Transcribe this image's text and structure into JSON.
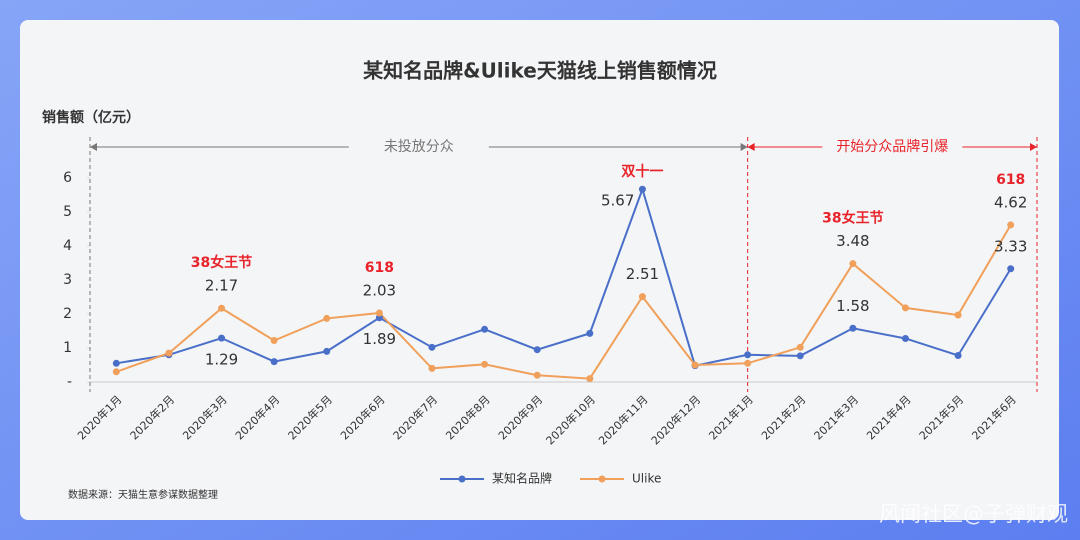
{
  "chart_data": {
    "type": "line",
    "title": "某知名品牌&Ulike天猫线上销售额情况",
    "y_label": "销售额（亿元）",
    "source": "数据来源：天猫生意参谋数据整理",
    "watermark": "风闻社区@子弹财观",
    "categories": [
      "2020年1月",
      "2020年2月",
      "2020年3月",
      "2020年4月",
      "2020年5月",
      "2020年6月",
      "2020年7月",
      "2020年8月",
      "2020年9月",
      "2020年10月",
      "2020年11月",
      "2020年12月",
      "2021年1月",
      "2021年2月",
      "2021年3月",
      "2021年4月",
      "2021年5月",
      "2021年6月"
    ],
    "series": [
      {
        "name": "某知名品牌",
        "color": "#4a6fc9",
        "values": [
          0.55,
          0.8,
          1.29,
          0.6,
          0.9,
          1.89,
          1.02,
          1.55,
          0.95,
          1.43,
          5.67,
          0.48,
          0.8,
          0.77,
          1.58,
          1.28,
          0.78,
          3.33
        ],
        "value_labels": [
          null,
          null,
          "1.29",
          null,
          null,
          "1.89",
          null,
          null,
          null,
          null,
          "5.67",
          null,
          null,
          null,
          "1.58",
          null,
          null,
          "3.33"
        ]
      },
      {
        "name": "Ulike",
        "color": "#f0a05a",
        "values": [
          0.3,
          0.85,
          2.17,
          1.22,
          1.87,
          2.03,
          0.4,
          0.52,
          0.2,
          0.1,
          2.51,
          0.5,
          0.55,
          1.02,
          3.48,
          2.18,
          1.97,
          4.62
        ],
        "value_labels": [
          null,
          null,
          "2.17",
          null,
          null,
          "2.03",
          null,
          null,
          null,
          null,
          "2.51",
          null,
          null,
          null,
          "3.48",
          null,
          null,
          "4.62"
        ]
      }
    ],
    "ylim": [
      0,
      6
    ],
    "yticks": [
      {
        "value": 0,
        "label": "-"
      },
      1,
      2,
      3,
      4,
      5,
      6
    ],
    "annotations": [
      {
        "text": "38女王节",
        "at": "2020年3月"
      },
      {
        "text": "618",
        "at": "2020年6月"
      },
      {
        "text": "双十一",
        "at": "2020年11月"
      },
      {
        "text": "38女王节",
        "at": "2021年3月"
      },
      {
        "text": "618",
        "at": "2021年6月"
      }
    ],
    "periods": [
      {
        "label": "未投放分众",
        "start": "2020年1月",
        "end": "2021年1月",
        "color": "#777777"
      },
      {
        "label": "开始分众品牌引爆",
        "start": "2021年1月",
        "end": "2021年6月",
        "color": "#e8232a"
      }
    ],
    "legend": "bottom"
  }
}
